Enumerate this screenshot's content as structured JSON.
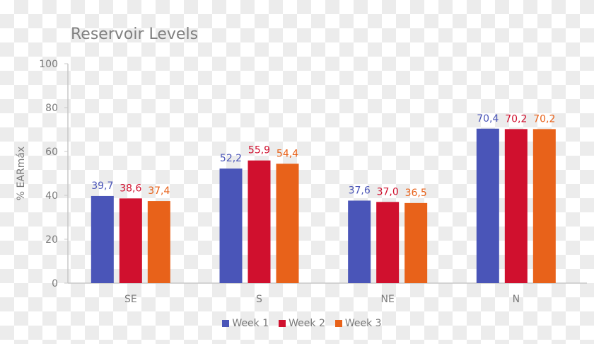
{
  "chart_data": {
    "type": "bar",
    "title": "Reservoir Levels",
    "xlabel": "",
    "ylabel": "% EARmáx",
    "ylim": [
      0,
      100
    ],
    "yticks": [
      0,
      20,
      40,
      60,
      80,
      100
    ],
    "categories": [
      "SE",
      "S",
      "NE",
      "N"
    ],
    "series": [
      {
        "name": "Week 1",
        "color": "#4a55b8",
        "values": [
          39.7,
          52.2,
          37.6,
          70.4
        ],
        "labels": [
          "39,7",
          "52,2",
          "37,6",
          "70,4"
        ]
      },
      {
        "name": "Week 2",
        "color": "#d0102e",
        "values": [
          38.6,
          55.9,
          37.0,
          70.2
        ],
        "labels": [
          "38,6",
          "55,9",
          "37,0",
          "70,2"
        ]
      },
      {
        "name": "Week 3",
        "color": "#e8621a",
        "values": [
          37.4,
          54.4,
          36.5,
          70.2
        ],
        "labels": [
          "37,4",
          "54,4",
          "36,5",
          "70,2"
        ]
      }
    ],
    "legend": "bottom",
    "grid": false
  }
}
